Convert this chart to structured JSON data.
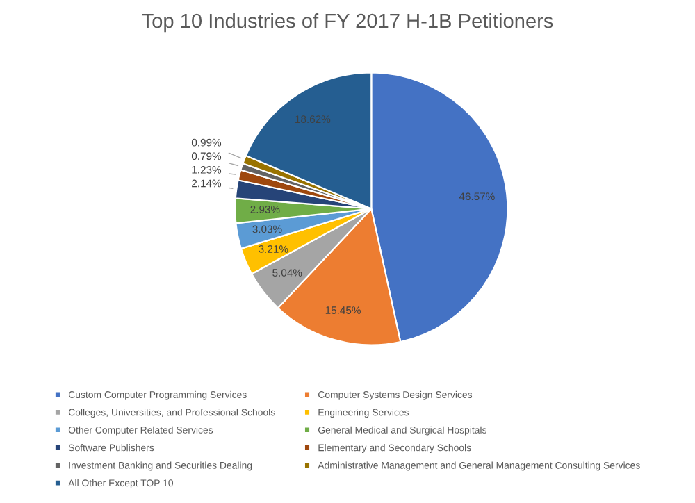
{
  "chart_data": {
    "type": "pie",
    "title": "Top 10 Industries of FY 2017 H-1B Petitioners",
    "categories": [
      "Custom Computer Programming Services",
      "Computer Systems Design Services",
      "Colleges, Universities, and Professional Schools",
      "Engineering Services",
      "Other Computer Related Services",
      "General Medical and Surgical Hospitals",
      "Software Publishers",
      "Elementary and Secondary Schools",
      "Investment Banking and Securities Dealing",
      "Administrative Management and General Management Consulting Services",
      "All Other Except TOP 10"
    ],
    "values": [
      46.57,
      15.45,
      5.04,
      3.21,
      3.03,
      2.93,
      2.14,
      1.23,
      0.79,
      0.99,
      18.62
    ],
    "value_labels": [
      "46.57%",
      "15.45%",
      "5.04%",
      "3.21%",
      "3.03%",
      "2.93%",
      "2.14%",
      "1.23%",
      "0.79%",
      "0.99%",
      "18.62%"
    ],
    "colors": [
      "#4472c4",
      "#ed7d31",
      "#a5a5a5",
      "#ffc000",
      "#5b9bd5",
      "#70ad47",
      "#264478",
      "#9e480e",
      "#636363",
      "#997300",
      "#255e91"
    ],
    "legend": "bottom"
  }
}
